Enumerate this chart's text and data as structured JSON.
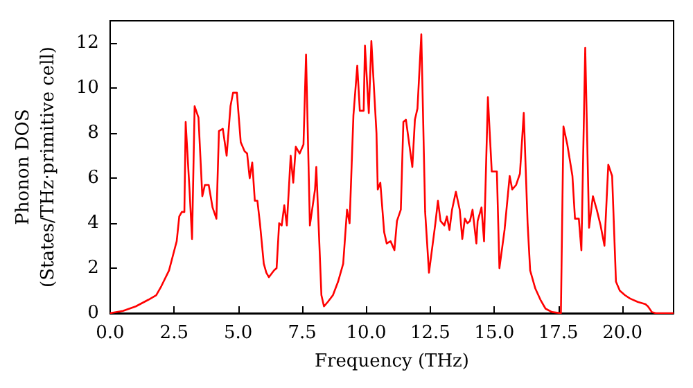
{
  "chart_data": {
    "type": "line",
    "xlabel": "Frequency (THz)",
    "ylabel": "Phonon DOS\n(States/THz·primitive cell)",
    "xlim": [
      0,
      22
    ],
    "xticks": [
      {
        "value": 0,
        "label": "0.0"
      },
      {
        "value": 2.5,
        "label": "2.5"
      },
      {
        "value": 5,
        "label": "5.0"
      },
      {
        "value": 7.5,
        "label": "7.5"
      },
      {
        "value": 10,
        "label": "10.0"
      },
      {
        "value": 12.5,
        "label": "12.5"
      },
      {
        "value": 15,
        "label": "15.0"
      },
      {
        "value": 17.5,
        "label": "17.5"
      },
      {
        "value": 20,
        "label": "20.0"
      }
    ],
    "ylim": [
      0,
      13
    ],
    "yticks": [
      0,
      2,
      4,
      6,
      8,
      10,
      12
    ],
    "grid": false,
    "marker": "none",
    "line_style": "solid",
    "x": [
      0,
      0.5,
      1,
      1.5,
      1.8,
      2.0,
      2.3,
      2.6,
      2.7,
      2.8,
      2.9,
      2.95,
      3.1,
      3.2,
      3.3,
      3.45,
      3.6,
      3.7,
      3.85,
      4.0,
      4.15,
      4.25,
      4.4,
      4.55,
      4.7,
      4.8,
      4.95,
      5.1,
      5.25,
      5.35,
      5.45,
      5.55,
      5.65,
      5.75,
      5.85,
      6.0,
      6.1,
      6.2,
      6.4,
      6.5,
      6.6,
      6.7,
      6.8,
      6.9,
      7.05,
      7.15,
      7.25,
      7.4,
      7.55,
      7.65,
      7.8,
      8.0,
      8.05,
      8.25,
      8.35,
      8.5,
      8.7,
      8.9,
      9.1,
      9.25,
      9.35,
      9.5,
      9.65,
      9.75,
      9.9,
      9.95,
      10.1,
      10.2,
      10.4,
      10.45,
      10.55,
      10.7,
      10.8,
      10.95,
      11.1,
      11.2,
      11.35,
      11.45,
      11.55,
      11.8,
      11.9,
      12.0,
      12.15,
      12.3,
      12.45,
      12.7,
      12.8,
      12.9,
      13.05,
      13.15,
      13.25,
      13.35,
      13.5,
      13.65,
      13.75,
      13.85,
      13.95,
      14.05,
      14.15,
      14.3,
      14.35,
      14.5,
      14.6,
      14.75,
      14.9,
      15.1,
      15.2,
      15.4,
      15.6,
      15.7,
      15.85,
      16.0,
      16.15,
      16.3,
      16.4,
      16.6,
      16.8,
      17.0,
      17.25,
      17.6,
      17.7,
      17.85,
      18.05,
      18.15,
      18.3,
      18.4,
      18.55,
      18.7,
      18.85,
      19.0,
      19.15,
      19.3,
      19.45,
      19.6,
      19.75,
      19.9,
      20.1,
      20.3,
      20.6,
      20.9,
      21.0,
      21.15,
      21.3,
      22
    ],
    "series": [
      {
        "color": "#ff0000",
        "values": [
          0,
          0.1,
          0.3,
          0.6,
          0.8,
          1.2,
          1.9,
          3.2,
          4.3,
          4.5,
          4.5,
          8.5,
          5.5,
          3.3,
          9.2,
          8.7,
          5.2,
          5.7,
          5.7,
          4.7,
          4.2,
          8.1,
          8.2,
          7.0,
          9.2,
          9.8,
          9.8,
          7.6,
          7.2,
          7.1,
          6.0,
          6.7,
          5.0,
          5.0,
          4.0,
          2.2,
          1.8,
          1.6,
          1.9,
          2.0,
          4.0,
          3.9,
          4.8,
          3.9,
          7.0,
          5.8,
          7.4,
          7.1,
          7.5,
          11.5,
          3.9,
          5.5,
          6.5,
          0.8,
          0.3,
          0.5,
          0.8,
          1.4,
          2.2,
          4.6,
          4.0,
          8.8,
          11.0,
          9.0,
          9.0,
          11.9,
          8.9,
          12.1,
          8.0,
          5.5,
          5.8,
          3.6,
          3.1,
          3.2,
          2.8,
          4.1,
          4.6,
          8.5,
          8.6,
          6.5,
          8.6,
          9.1,
          12.4,
          4.5,
          1.8,
          4.0,
          5.0,
          4.1,
          3.9,
          4.3,
          3.7,
          4.6,
          5.4,
          4.6,
          3.3,
          4.2,
          4.0,
          4.1,
          4.6,
          3.1,
          4.1,
          4.7,
          3.2,
          9.6,
          6.3,
          6.3,
          2.0,
          3.7,
          6.1,
          5.5,
          5.7,
          6.2,
          8.9,
          4.0,
          1.9,
          1.1,
          0.6,
          0.2,
          0.05,
          0,
          8.3,
          7.5,
          6.1,
          4.2,
          4.2,
          2.8,
          11.8,
          3.8,
          5.2,
          4.6,
          3.9,
          3.0,
          6.6,
          6.1,
          1.4,
          1.0,
          0.8,
          0.65,
          0.5,
          0.4,
          0.3,
          0.05,
          0,
          0
        ]
      }
    ]
  }
}
